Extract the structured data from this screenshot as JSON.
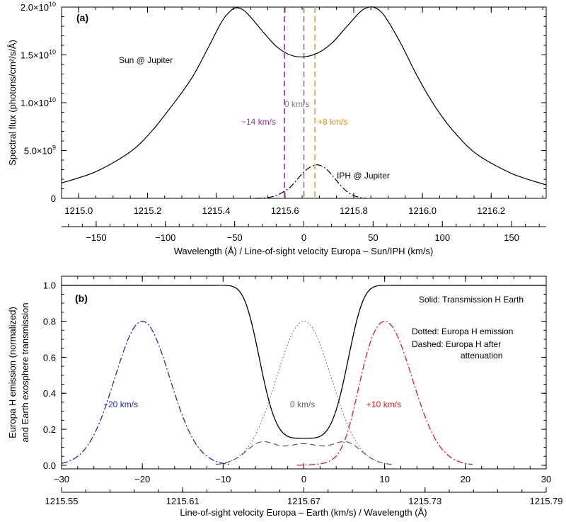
{
  "chart_data": [
    {
      "type": "line",
      "panel_label": "(a)",
      "ylabel": "Spectral flux (photons/cm²/s/Å)",
      "xlabel": "Wavelength (Å)  /  Line-of-sight velocity Europa – Sun/IPH (km/s)",
      "xlim_wavelength": [
        1214.95,
        1216.36
      ],
      "xlim_velocity": [
        -175,
        175
      ],
      "ylim": [
        0,
        20000000000.0
      ],
      "x_ticks_wavelength": [
        1215.0,
        1215.2,
        1215.4,
        1215.6,
        1215.8,
        1216.0,
        1216.2
      ],
      "x_tick_labels_wavelength": [
        "1215.0",
        "1215.2",
        "1215.4",
        "1215.6",
        "1215.8",
        "1216.0",
        "1216.2"
      ],
      "x_ticks_velocity": [
        -150,
        -100,
        -50,
        0,
        50,
        100,
        150
      ],
      "x_tick_labels_velocity": [
        "−150",
        "−100",
        "−50",
        "0",
        "50",
        "100",
        "150"
      ],
      "y_ticks": [
        0,
        5000000000.0,
        10000000000.0,
        15000000000.0,
        20000000000.0
      ],
      "y_tick_labels": [
        {
          "base": "0",
          "exp": ""
        },
        {
          "base": "5.0×10",
          "exp": "9"
        },
        {
          "base": "1.0×10",
          "exp": "10"
        },
        {
          "base": "1.5×10",
          "exp": "10"
        },
        {
          "base": "2.0×10",
          "exp": "10"
        }
      ],
      "series": [
        {
          "name": "Sun @ Jupiter",
          "style": "solid",
          "color": "#000000",
          "x_velocity": [
            -175,
            -150,
            -125,
            -110,
            -100,
            -90,
            -80,
            -70,
            -60,
            -55,
            -50,
            -45,
            -40,
            -30,
            -20,
            -10,
            0,
            10,
            20,
            30,
            40,
            45,
            50,
            55,
            60,
            70,
            80,
            90,
            100,
            110,
            125,
            150,
            175
          ],
          "y": [
            1600000000.0,
            2800000000.0,
            4900000000.0,
            7000000000.0,
            8800000000.0,
            10700000000.0,
            12800000000.0,
            15500000000.0,
            18300000000.0,
            19300000000.0,
            19900000000.0,
            19800000000.0,
            19200000000.0,
            17500000000.0,
            15900000000.0,
            15000000000.0,
            14800000000.0,
            15200000000.0,
            16200000000.0,
            17800000000.0,
            19400000000.0,
            19900000000.0,
            20000000000.0,
            19600000000.0,
            18700000000.0,
            16200000000.0,
            13300000000.0,
            10700000000.0,
            8500000000.0,
            6700000000.0,
            4600000000.0,
            2600000000.0,
            1400000000.0
          ]
        },
        {
          "name": "IPH @ Jupiter",
          "style": "dash-dot",
          "color": "#000000",
          "x_velocity": [
            -35,
            -30,
            -25,
            -20,
            -15,
            -10,
            -5,
            0,
            5,
            10,
            15,
            20,
            25,
            30,
            35,
            40,
            45
          ],
          "y": [
            0,
            20000000.0,
            100000000.0,
            300000000.0,
            650000000.0,
            1150000000.0,
            1950000000.0,
            2750000000.0,
            3300000000.0,
            3500000000.0,
            3200000000.0,
            2500000000.0,
            1600000000.0,
            850000000.0,
            350000000.0,
            100000000.0,
            0
          ]
        }
      ],
      "vertical_lines": [
        {
          "x_velocity": -14,
          "label": "−14 km/s",
          "color": "#9b2fae",
          "style": "dashed"
        },
        {
          "x_velocity": 0,
          "label": "0 km/s",
          "color": "#808080",
          "style": "dashed"
        },
        {
          "x_velocity": 8,
          "label": "+8 km/s",
          "color": "#f0a020",
          "style": "dashed"
        }
      ]
    },
    {
      "type": "line",
      "panel_label": "(b)",
      "ylabel": [
        "Europa H emission (normalized)",
        "and Earth exosphere transmission"
      ],
      "xlabel": "Line-of-sight velocity Europa – Earth (km/s)  /  Wavelength (Å)",
      "xlim_velocity": [
        -30,
        30
      ],
      "ylim": [
        -0.02,
        1.05
      ],
      "x_ticks_velocity": [
        -30,
        -20,
        -10,
        0,
        10,
        20,
        30
      ],
      "x_tick_labels_velocity": [
        "−30",
        "−20",
        "−10",
        "0",
        "10",
        "20",
        "30"
      ],
      "x_ticks_wavelength_at_velocity": [
        -30,
        -15,
        0,
        15,
        30
      ],
      "x_tick_labels_wavelength": [
        "1215.55",
        "1215.61",
        "1215.67",
        "1215.73",
        "1215.79"
      ],
      "y_ticks": [
        0.0,
        0.2,
        0.4,
        0.6,
        0.8,
        1.0
      ],
      "y_tick_labels": [
        "0.0",
        "0.2",
        "0.4",
        "0.6",
        "0.8",
        "1.0"
      ],
      "legend_notes": {
        "solid": "Solid: Transmission H Earth",
        "dotted": "Dotted: Europa H emission",
        "dashed_1": "Dashed: Europa H after",
        "dashed_2": "attenuation"
      },
      "series": [
        {
          "name": "Transmission H Earth",
          "style": "solid",
          "color": "#000000",
          "kind": "transmission",
          "min": 0.15,
          "width_kms": 5.0
        },
        {
          "name": "Europa H emission (0 km/s)",
          "style": "dotted",
          "color": "#606060",
          "kind": "emission",
          "center_kms": 0,
          "peak": 0.8,
          "sigma_kms": 3.4
        },
        {
          "name": "Europa H after attenuation (0 km/s)",
          "style": "dashed",
          "color": "#606060",
          "kind": "attenuated",
          "center_kms": 0,
          "peak": 0.8,
          "sigma_kms": 3.4
        },
        {
          "name": "Europa H after attenuation (−20 km/s)",
          "style": "dash-dot",
          "color": "#1f2fa8",
          "kind": "attenuated",
          "center_kms": -20,
          "peak": 0.8,
          "sigma_kms": 3.4
        },
        {
          "name": "Europa H after attenuation (+10 km/s)",
          "style": "dash-dot",
          "color": "#d42020",
          "kind": "attenuated",
          "center_kms": 10,
          "peak": 0.8,
          "sigma_kms": 3.4
        }
      ],
      "annotations": [
        {
          "text": "−20 km/s",
          "color": "#1f2fa8"
        },
        {
          "text": "0 km/s",
          "color": "#606060"
        },
        {
          "text": "+10 km/s",
          "color": "#d42020"
        }
      ]
    }
  ]
}
